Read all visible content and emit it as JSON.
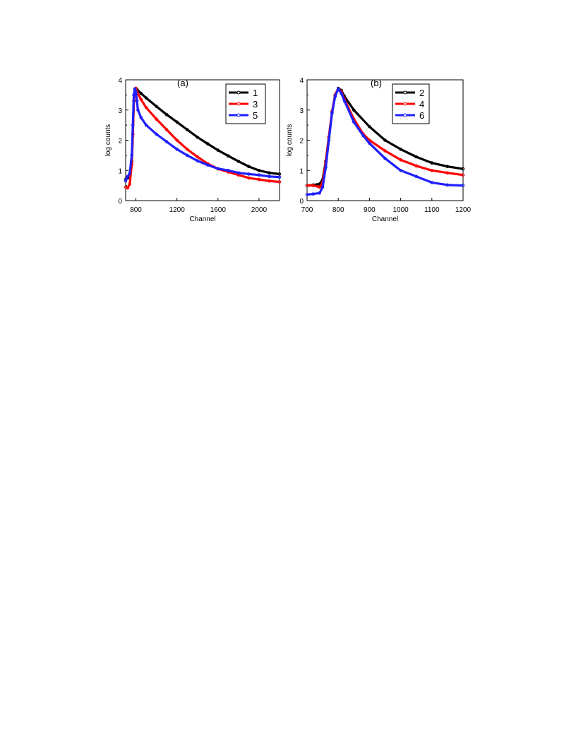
{
  "chart_data": [
    {
      "panel_label": "(a)",
      "type": "line",
      "xlabel": "Channel",
      "ylabel": "log counts",
      "xlim": [
        700,
        2200
      ],
      "ylim": [
        0,
        4
      ],
      "xticks": [
        800,
        1200,
        1600,
        2000
      ],
      "yticks": [
        0,
        1,
        2,
        3,
        4
      ],
      "grid": false,
      "legend_position": "top-right",
      "series": [
        {
          "name": "1",
          "color": "#000000",
          "x": [
            700,
            720,
            740,
            760,
            770,
            780,
            790,
            800,
            810,
            850,
            900,
            1000,
            1100,
            1200,
            1300,
            1400,
            1500,
            1600,
            1700,
            1800,
            1900,
            2000,
            2100,
            2200
          ],
          "y": [
            0.7,
            0.75,
            0.85,
            1.3,
            2.2,
            3.3,
            3.68,
            3.72,
            3.68,
            3.55,
            3.4,
            3.12,
            2.85,
            2.6,
            2.35,
            2.1,
            1.88,
            1.67,
            1.48,
            1.3,
            1.13,
            1.0,
            0.92,
            0.88
          ]
        },
        {
          "name": "3",
          "color": "#ff0000",
          "x": [
            700,
            720,
            740,
            760,
            770,
            780,
            790,
            800,
            810,
            850,
            900,
            1000,
            1100,
            1200,
            1300,
            1400,
            1500,
            1600,
            1700,
            1800,
            1900,
            2000,
            2100,
            2200
          ],
          "y": [
            0.45,
            0.42,
            0.55,
            1.2,
            2.2,
            3.3,
            3.68,
            3.72,
            3.6,
            3.35,
            3.08,
            2.7,
            2.35,
            2.0,
            1.7,
            1.45,
            1.22,
            1.05,
            0.95,
            0.85,
            0.75,
            0.7,
            0.65,
            0.62
          ]
        },
        {
          "name": "5",
          "color": "#1f1fff",
          "x": [
            700,
            720,
            740,
            760,
            770,
            780,
            790,
            800,
            810,
            820,
            850,
            900,
            1000,
            1100,
            1200,
            1300,
            1400,
            1500,
            1600,
            1700,
            1800,
            1900,
            2000,
            2100,
            2200
          ],
          "y": [
            0.65,
            0.8,
            0.9,
            1.5,
            2.5,
            3.5,
            3.7,
            3.6,
            3.3,
            3.0,
            2.75,
            2.5,
            2.2,
            1.95,
            1.7,
            1.5,
            1.32,
            1.18,
            1.06,
            1.0,
            0.92,
            0.88,
            0.85,
            0.8,
            0.78
          ]
        }
      ]
    },
    {
      "panel_label": "(b)",
      "type": "line",
      "xlabel": "Channel",
      "ylabel": "log counts",
      "xlim": [
        700,
        1200
      ],
      "ylim": [
        0,
        4
      ],
      "xticks": [
        700,
        800,
        900,
        1000,
        1100,
        1200
      ],
      "yticks": [
        0,
        1,
        2,
        3,
        4
      ],
      "grid": false,
      "legend_position": "top-right",
      "series": [
        {
          "name": "2",
          "color": "#000000",
          "x": [
            700,
            720,
            740,
            750,
            760,
            770,
            780,
            790,
            800,
            810,
            820,
            850,
            900,
            950,
            1000,
            1050,
            1100,
            1150,
            1200
          ],
          "y": [
            0.5,
            0.52,
            0.55,
            0.7,
            1.3,
            2.1,
            2.9,
            3.5,
            3.72,
            3.65,
            3.45,
            3.0,
            2.45,
            2.0,
            1.7,
            1.45,
            1.25,
            1.13,
            1.05
          ]
        },
        {
          "name": "4",
          "color": "#ff0000",
          "x": [
            700,
            720,
            740,
            750,
            760,
            770,
            780,
            790,
            800,
            810,
            820,
            850,
            880,
            900,
            950,
            1000,
            1050,
            1100,
            1150,
            1200
          ],
          "y": [
            0.5,
            0.5,
            0.45,
            0.6,
            1.25,
            2.1,
            2.95,
            3.5,
            3.7,
            3.6,
            3.35,
            2.7,
            2.2,
            2.0,
            1.65,
            1.35,
            1.15,
            1.0,
            0.92,
            0.85
          ]
        },
        {
          "name": "6",
          "color": "#1f1fff",
          "x": [
            700,
            720,
            740,
            750,
            760,
            770,
            780,
            790,
            800,
            810,
            820,
            850,
            880,
            900,
            950,
            1000,
            1050,
            1100,
            1150,
            1200
          ],
          "y": [
            0.2,
            0.22,
            0.25,
            0.45,
            1.1,
            2.0,
            2.9,
            3.45,
            3.7,
            3.55,
            3.3,
            2.6,
            2.15,
            1.9,
            1.4,
            1.0,
            0.8,
            0.6,
            0.52,
            0.5
          ]
        }
      ]
    }
  ]
}
